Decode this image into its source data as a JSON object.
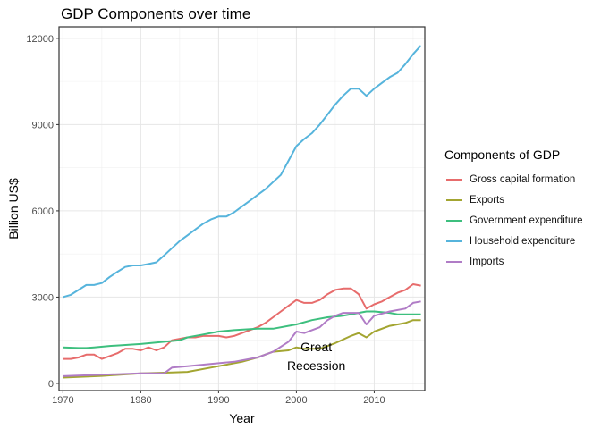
{
  "chart_data": {
    "type": "line",
    "title": "GDP Components over time",
    "xlabel": "Year",
    "ylabel": "Billion US$",
    "xlim": [
      1969.5,
      2016.5
    ],
    "ylim": [
      -250,
      12400
    ],
    "xticks": [
      1970,
      1980,
      1990,
      2000,
      2010
    ],
    "yticks": [
      0,
      3000,
      6000,
      9000,
      12000
    ],
    "grid": true,
    "legend": {
      "title": "Components of GDP",
      "placement": "right"
    },
    "annotation": {
      "lines": [
        "Great",
        "Recession"
      ],
      "x": 2006,
      "y": 800
    },
    "series": [
      {
        "name": "Gross capital formation",
        "color": "#E76C6C",
        "points": [
          [
            1970,
            850
          ],
          [
            1971,
            850
          ],
          [
            1972,
            900
          ],
          [
            1973,
            1000
          ],
          [
            1974,
            1000
          ],
          [
            1975,
            850
          ],
          [
            1976,
            950
          ],
          [
            1977,
            1050
          ],
          [
            1978,
            1200
          ],
          [
            1979,
            1200
          ],
          [
            1980,
            1150
          ],
          [
            1981,
            1250
          ],
          [
            1982,
            1150
          ],
          [
            1983,
            1250
          ],
          [
            1984,
            1500
          ],
          [
            1985,
            1550
          ],
          [
            1986,
            1600
          ],
          [
            1987,
            1600
          ],
          [
            1988,
            1650
          ],
          [
            1989,
            1650
          ],
          [
            1990,
            1650
          ],
          [
            1991,
            1600
          ],
          [
            1992,
            1650
          ],
          [
            1993,
            1750
          ],
          [
            1994,
            1850
          ],
          [
            1995,
            1950
          ],
          [
            1996,
            2100
          ],
          [
            1997,
            2300
          ],
          [
            1998,
            2500
          ],
          [
            1999,
            2700
          ],
          [
            2000,
            2900
          ],
          [
            2001,
            2800
          ],
          [
            2002,
            2800
          ],
          [
            2003,
            2900
          ],
          [
            2004,
            3100
          ],
          [
            2005,
            3250
          ],
          [
            2006,
            3300
          ],
          [
            2007,
            3300
          ],
          [
            2008,
            3100
          ],
          [
            2009,
            2600
          ],
          [
            2010,
            2750
          ],
          [
            2011,
            2850
          ],
          [
            2012,
            3000
          ],
          [
            2013,
            3150
          ],
          [
            2014,
            3250
          ],
          [
            2015,
            3450
          ],
          [
            2016,
            3400
          ]
        ]
      },
      {
        "name": "Exports",
        "color": "#A3A531",
        "points": [
          [
            1970,
            200
          ],
          [
            1975,
            260
          ],
          [
            1980,
            350
          ],
          [
            1984,
            380
          ],
          [
            1986,
            400
          ],
          [
            1990,
            600
          ],
          [
            1993,
            750
          ],
          [
            1995,
            900
          ],
          [
            1997,
            1100
          ],
          [
            1999,
            1150
          ],
          [
            2000,
            1250
          ],
          [
            2001,
            1200
          ],
          [
            2003,
            1200
          ],
          [
            2005,
            1400
          ],
          [
            2007,
            1650
          ],
          [
            2008,
            1750
          ],
          [
            2009,
            1600
          ],
          [
            2010,
            1800
          ],
          [
            2012,
            2000
          ],
          [
            2014,
            2100
          ],
          [
            2015,
            2200
          ],
          [
            2016,
            2200
          ]
        ]
      },
      {
        "name": "Government expenditure",
        "color": "#3DBF7E",
        "points": [
          [
            1970,
            1250
          ],
          [
            1972,
            1230
          ],
          [
            1973,
            1230
          ],
          [
            1974,
            1250
          ],
          [
            1976,
            1300
          ],
          [
            1980,
            1370
          ],
          [
            1985,
            1500
          ],
          [
            1986,
            1600
          ],
          [
            1988,
            1700
          ],
          [
            1990,
            1800
          ],
          [
            1992,
            1850
          ],
          [
            1995,
            1900
          ],
          [
            1997,
            1900
          ],
          [
            2000,
            2050
          ],
          [
            2002,
            2200
          ],
          [
            2004,
            2300
          ],
          [
            2006,
            2350
          ],
          [
            2008,
            2450
          ],
          [
            2009,
            2500
          ],
          [
            2010,
            2500
          ],
          [
            2012,
            2450
          ],
          [
            2013,
            2400
          ],
          [
            2016,
            2400
          ]
        ]
      },
      {
        "name": "Household expenditure",
        "color": "#56B4DC",
        "points": [
          [
            1970,
            3000
          ],
          [
            1971,
            3080
          ],
          [
            1972,
            3250
          ],
          [
            1973,
            3420
          ],
          [
            1974,
            3420
          ],
          [
            1975,
            3490
          ],
          [
            1976,
            3700
          ],
          [
            1977,
            3880
          ],
          [
            1978,
            4050
          ],
          [
            1979,
            4100
          ],
          [
            1980,
            4100
          ],
          [
            1981,
            4150
          ],
          [
            1982,
            4210
          ],
          [
            1983,
            4450
          ],
          [
            1984,
            4700
          ],
          [
            1985,
            4950
          ],
          [
            1986,
            5150
          ],
          [
            1987,
            5350
          ],
          [
            1988,
            5550
          ],
          [
            1989,
            5700
          ],
          [
            1990,
            5800
          ],
          [
            1991,
            5800
          ],
          [
            1992,
            5950
          ],
          [
            1993,
            6150
          ],
          [
            1994,
            6350
          ],
          [
            1995,
            6550
          ],
          [
            1996,
            6750
          ],
          [
            1997,
            7000
          ],
          [
            1998,
            7250
          ],
          [
            1999,
            7750
          ],
          [
            2000,
            8250
          ],
          [
            2001,
            8500
          ],
          [
            2002,
            8700
          ],
          [
            2003,
            9000
          ],
          [
            2004,
            9350
          ],
          [
            2005,
            9700
          ],
          [
            2006,
            10000
          ],
          [
            2007,
            10250
          ],
          [
            2008,
            10250
          ],
          [
            2009,
            10000
          ],
          [
            2010,
            10250
          ],
          [
            2011,
            10450
          ],
          [
            2012,
            10650
          ],
          [
            2013,
            10800
          ],
          [
            2014,
            11100
          ],
          [
            2015,
            11450
          ],
          [
            2016,
            11750
          ]
        ]
      },
      {
        "name": "Imports",
        "color": "#B07CC6",
        "points": [
          [
            1970,
            250
          ],
          [
            1975,
            300
          ],
          [
            1980,
            350
          ],
          [
            1983,
            350
          ],
          [
            1984,
            550
          ],
          [
            1986,
            600
          ],
          [
            1990,
            700
          ],
          [
            1992,
            750
          ],
          [
            1995,
            900
          ],
          [
            1997,
            1100
          ],
          [
            1999,
            1450
          ],
          [
            2000,
            1800
          ],
          [
            2001,
            1750
          ],
          [
            2002,
            1850
          ],
          [
            2003,
            1950
          ],
          [
            2004,
            2200
          ],
          [
            2005,
            2350
          ],
          [
            2006,
            2450
          ],
          [
            2007,
            2450
          ],
          [
            2008,
            2450
          ],
          [
            2009,
            2050
          ],
          [
            2010,
            2350
          ],
          [
            2012,
            2500
          ],
          [
            2014,
            2600
          ],
          [
            2015,
            2800
          ],
          [
            2016,
            2850
          ]
        ]
      }
    ]
  }
}
